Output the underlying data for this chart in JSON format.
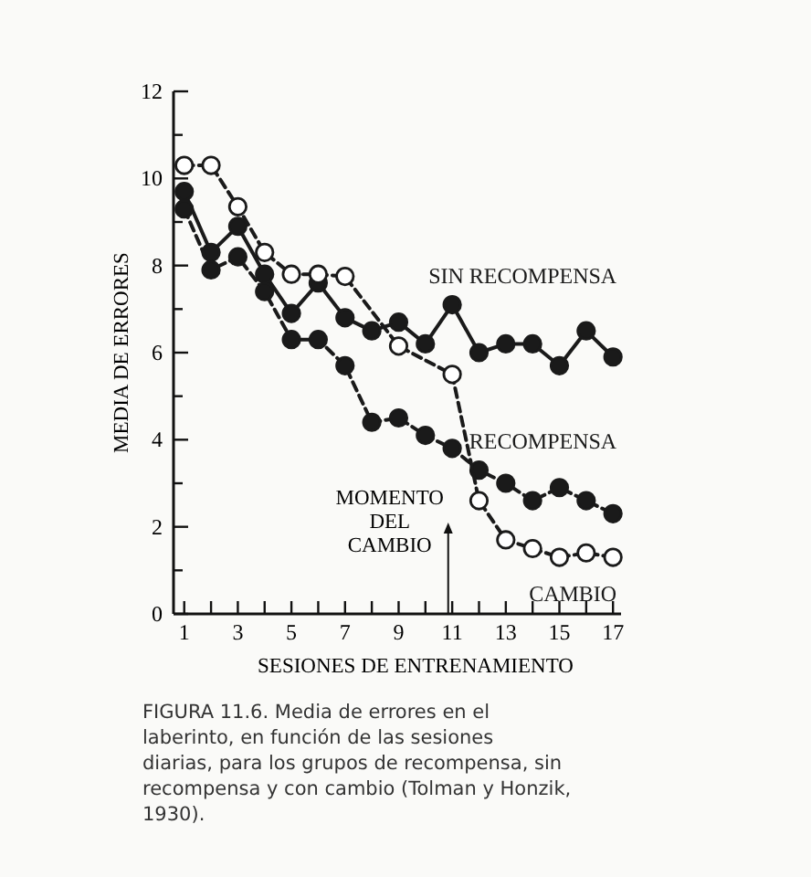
{
  "chart_data": {
    "type": "line",
    "ylabel": "MEDIA DE ERRORES",
    "xlabel": "SESIONES DE ENTRENAMIENTO",
    "xlim": [
      0.6,
      17.3
    ],
    "ylim": [
      0,
      12
    ],
    "xticks": [
      1,
      {
        "value": 2,
        "label": null
      },
      3,
      {
        "value": 4,
        "label": null
      },
      5,
      {
        "value": 6,
        "label": null
      },
      7,
      {
        "value": 8,
        "label": null
      },
      9,
      {
        "value": 10,
        "label": null
      },
      11,
      {
        "value": 12,
        "label": null
      },
      13,
      {
        "value": 14,
        "label": null
      },
      15,
      {
        "value": 16,
        "label": null
      },
      17
    ],
    "yticks": [
      0,
      {
        "value": 1,
        "label": null
      },
      2,
      {
        "value": 3,
        "label": null
      },
      4,
      {
        "value": 5,
        "label": null
      },
      6,
      {
        "value": 7,
        "label": null
      },
      8,
      {
        "value": 9,
        "label": null
      },
      10,
      {
        "value": 11,
        "label": null
      },
      12
    ],
    "grid": false,
    "legend": false,
    "marker": "circle",
    "series": [
      {
        "name": "SIN RECOMPENSA",
        "color": "#1a1a1a",
        "line_style": "solid",
        "x": [
          1,
          2,
          3,
          4,
          5,
          6,
          7,
          8,
          9,
          10,
          11,
          12,
          13,
          14,
          15,
          16,
          17
        ],
        "values": [
          9.7,
          8.3,
          8.9,
          7.8,
          6.9,
          7.6,
          6.8,
          6.5,
          6.7,
          6.2,
          7.1,
          6.0,
          6.2,
          6.2,
          5.7,
          6.5,
          5.9
        ]
      },
      {
        "name": "RECOMPENSA",
        "color": "#1a1a1a",
        "line_style": "dashed",
        "x": [
          1,
          2,
          3,
          4,
          5,
          6,
          7,
          8,
          9,
          10,
          11,
          12,
          13,
          14,
          15,
          16,
          17
        ],
        "values": [
          9.3,
          7.9,
          8.2,
          7.4,
          6.3,
          6.3,
          5.7,
          4.4,
          4.5,
          4.1,
          3.8,
          3.3,
          3.0,
          2.6,
          2.9,
          2.6,
          2.3
        ]
      },
      {
        "name": "CAMBIO",
        "color": "#ffffff",
        "line_style": "dashed",
        "x": [
          1,
          2,
          3,
          4,
          5,
          6,
          7,
          9,
          11,
          12,
          13,
          14,
          15,
          16,
          17
        ],
        "values": [
          10.3,
          10.3,
          9.35,
          8.3,
          7.8,
          7.8,
          7.75,
          6.15,
          5.5,
          2.6,
          1.7,
          1.5,
          1.3,
          1.4,
          1.3
        ]
      }
    ],
    "annotations": [
      "MOMENTO DEL CAMBIO",
      "FIGURA 11.6.    Media de errores en el laberinto, en función de las sesiones diarias, para los grupos de recompensa, sin recompensa y con cambio (Tolman y Honzik, 1930)."
    ]
  }
}
